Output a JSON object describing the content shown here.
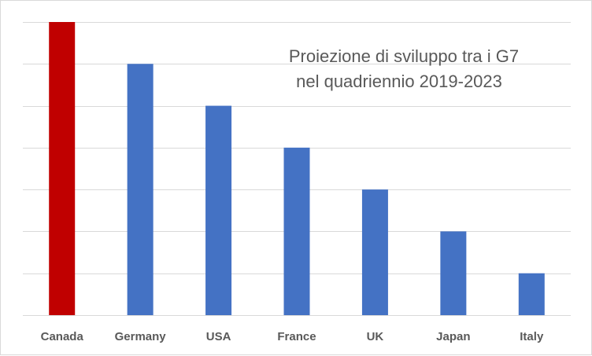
{
  "chart_data": {
    "type": "bar",
    "title_lines": [
      "Proiezione di sviluppo tra i G7",
      "nel quadriennio 2019-2023"
    ],
    "categories": [
      "Canada",
      "Germany",
      "USA",
      "France",
      "UK",
      "Japan",
      "Italy"
    ],
    "values": [
      7,
      6,
      5,
      4,
      3,
      2,
      1
    ],
    "highlight_index": 0,
    "colors": {
      "default": "#4472C4",
      "highlight": "#C00000",
      "grid": "#d9d9d9",
      "text": "#595959"
    },
    "ylim": [
      0,
      7
    ],
    "y_gridlines": 7,
    "grid": true,
    "legend": "none",
    "xlabel": "",
    "ylabel": ""
  }
}
